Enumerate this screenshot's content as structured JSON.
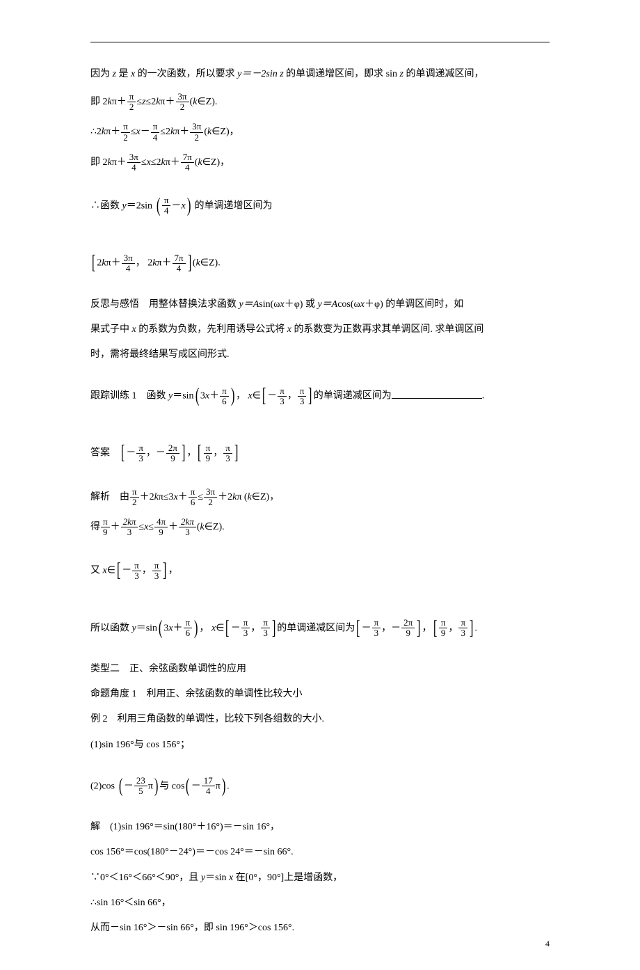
{
  "page_number": "4",
  "colors": {
    "text": "#000000",
    "background": "#ffffff",
    "rule": "#000000"
  },
  "font_size_pt": 10.5,
  "lines": {
    "l1_pre": "因为 ",
    "l1_var_z": "z",
    "l1_mid1": " 是 ",
    "l1_var_x": "x",
    "l1_mid2": " 的一次函数，所以要求 ",
    "l1_eq": "y＝－2sin z",
    "l1_mid3": " 的单调递增区间，即求 sin ",
    "l1_var_z2": "z",
    "l1_post": " 的单调递减区间，",
    "l2_pre": "即 2",
    "l2_k": "k",
    "l2_pi": "π＋",
    "l2_f1n": "π",
    "l2_f1d": "2",
    "l2_le1": "≤",
    "l2_z": "z",
    "l2_le2": "≤2",
    "l2_k2": "k",
    "l2_pi2": "π＋",
    "l2_f2n": "3π",
    "l2_f2d": "2",
    "l2_tail": "(",
    "l2_kz": "k",
    "l2_inz": "∈Z).",
    "l3_pre": "∴2",
    "l3_k": "k",
    "l3_pi": "π＋",
    "l3_f1n": "π",
    "l3_f1d": "2",
    "l3_le1": "≤",
    "l3_x": "x",
    "l3_minus": "－",
    "l3_f2n": "π",
    "l3_f2d": "4",
    "l3_le2": "≤2",
    "l3_k2": "k",
    "l3_pi2": "π＋",
    "l3_f3n": "3π",
    "l3_f3d": "2",
    "l3_tail": "(",
    "l3_kz": "k",
    "l3_inz": "∈Z)，",
    "l4_pre": "即 2",
    "l4_k": "k",
    "l4_pi": "π＋",
    "l4_f1n": "3π",
    "l4_f1d": "4",
    "l4_le1": "≤",
    "l4_x": "x",
    "l4_le2": "≤2",
    "l4_k2": "k",
    "l4_pi2": "π＋",
    "l4_f2n": "7π",
    "l4_f2d": "4",
    "l4_tail": "(",
    "l4_kz": "k",
    "l4_inz": "∈Z)，",
    "l5_pre": "∴函数 ",
    "l5_y": "y",
    "l5_eq": "＝2sin ",
    "l5_fn": "π",
    "l5_fd": "4",
    "l5_minus": "－",
    "l5_x": "x",
    "l5_post": " 的单调递增区间为",
    "l6_2k": "2",
    "l6_k": "k",
    "l6_pi": "π＋",
    "l6_f1n": "3π",
    "l6_f1d": "4",
    "l6_comma": "，",
    "l6_sp": " 2",
    "l6_k2": "k",
    "l6_pi2": "π＋",
    "l6_f2n": "7π",
    "l6_f2d": "4",
    "l6_tail": "(",
    "l6_kz": "k",
    "l6_inz": "∈Z).",
    "l7": "反思与感悟　用整体替换法求函数 ",
    "l7_eq": "y＝A",
    "l7_sin": "sin(ω",
    "l7_x": "x",
    "l7_plus": "＋φ) 或 ",
    "l7_eq2": "y＝A",
    "l7_cos": "cos(ω",
    "l7_x2": "x",
    "l7_plus2": "＋φ) 的单调区间时，如",
    "l8": "果式子中 ",
    "l8_x": "x",
    "l8_mid": " 的系数为负数，先利用诱导公式将 ",
    "l8_x2": "x",
    "l8_post": " 的系数变为正数再求其单调区间. 求单调区间",
    "l9": "时，需将最终结果写成区间形式.",
    "l10_pre": "跟踪训练 1　函数 ",
    "l10_y": "y",
    "l10_eq": "＝sin",
    "l10_3x": "3",
    "l10_x": "x",
    "l10_plus": "＋",
    "l10_fn": "π",
    "l10_fd": "6",
    "l10_comma": "，",
    "l10_x2": " x",
    "l10_in": "∈",
    "l10_af1n": "π",
    "l10_af1d": "3",
    "l10_af2n": "π",
    "l10_af2d": "3",
    "l10_neg": "－",
    "l10_sep": "，",
    "l10_post": "的单调递减区间为",
    "l10_blank": ".",
    "l11_pre": "答案　",
    "l11_neg1": "－",
    "l11_f1n": "π",
    "l11_f1d": "3",
    "l11_c1": "，",
    "l11_neg2": "－",
    "l11_f2n": "2π",
    "l11_f2d": "9",
    "l11_sep": "，",
    "l11_f3n": "π",
    "l11_f3d": "9",
    "l11_c2": "，",
    "l11_f4n": "π",
    "l11_f4d": "3",
    "l12_pre": "解析　由",
    "l12_f1n": "π",
    "l12_f1d": "2",
    "l12_p1": "＋2",
    "l12_k": "k",
    "l12_pi": "π≤3",
    "l12_x": "x",
    "l12_p2": "＋",
    "l12_f2n": "π",
    "l12_f2d": "6",
    "l12_le": "≤",
    "l12_f3n": "3π",
    "l12_f3d": "2",
    "l12_p3": "＋2",
    "l12_k2": "k",
    "l12_pi2": "π (",
    "l12_kz": "k",
    "l12_inz": "∈Z)，",
    "l13_pre": "得",
    "l13_f1n": "π",
    "l13_f1d": "9",
    "l13_p1": "＋",
    "l13_f2n": "2kπ",
    "l13_f2d": "3",
    "l13_le1": "≤",
    "l13_x": "x",
    "l13_le2": "≤",
    "l13_f3n": "4π",
    "l13_f3d": "9",
    "l13_p2": "＋",
    "l13_f4n": "2kπ",
    "l13_f4d": "3",
    "l13_tail": "(",
    "l13_kz": "k",
    "l13_inz": "∈Z).",
    "l14_pre": "又 ",
    "l14_x": "x",
    "l14_in": "∈",
    "l14_neg": "－",
    "l14_f1n": "π",
    "l14_f1d": "3",
    "l14_c": "，",
    "l14_f2n": "π",
    "l14_f2d": "3",
    "l14_post": "，",
    "l15_pre": "所以函数 ",
    "l15_y": "y",
    "l15_eq": "＝sin",
    "l15_3": "3",
    "l15_x": "x",
    "l15_plus": "＋",
    "l15_fn": "π",
    "l15_fd": "6",
    "l15_c": "，",
    "l15_x2": " x",
    "l15_in": "∈",
    "l15_neg": "－",
    "l15_af1n": "π",
    "l15_af1d": "3",
    "l15_sep": "，",
    "l15_af2n": "π",
    "l15_af2d": "3",
    "l15_mid": "的单调递减区间为",
    "l15_neg2": "－",
    "l15_bf1n": "π",
    "l15_bf1d": "3",
    "l15_bc": "，",
    "l15_neg3": "－",
    "l15_bf2n": "2π",
    "l15_bf2d": "9",
    "l15_sep2": "，",
    "l15_cf1n": "π",
    "l15_cf1d": "9",
    "l15_cc": "，",
    "l15_cf2n": "π",
    "l15_cf2d": "3",
    "l15_dot": ".",
    "l16": "类型二　正、余弦函数单调性的应用",
    "l17": "命题角度 1　利用正、余弦函数的单调性比较大小",
    "l18": "例 2　利用三角函数的单调性，比较下列各组数的大小.",
    "l19": "(1)sin 196°与 cos 156°；",
    "l20_pre": "(2)cos ",
    "l20_neg1": "－",
    "l20_f1n": "23",
    "l20_f1d": "5",
    "l20_pi1": "π",
    "l20_mid": "与 cos",
    "l20_neg2": "－",
    "l20_f2n": "17",
    "l20_f2d": "4",
    "l20_pi2": "π",
    "l20_dot": ".",
    "l21": "解　(1)sin 196°＝sin(180°＋16°)＝－sin 16°，",
    "l22": "cos 156°＝cos(180°－24°)＝－cos 24°＝－sin 66°.",
    "l23": "∵0°＜16°＜66°＜90°，且 ",
    "l23_y": "y",
    "l23_eq": "＝sin ",
    "l23_x": "x",
    "l23_post": " 在[0°，90°]上是增函数，",
    "l24": "∴sin 16°＜sin 66°，",
    "l25": "从而－sin 16°＞－sin 66°，即 sin 196°＞cos 156°."
  }
}
